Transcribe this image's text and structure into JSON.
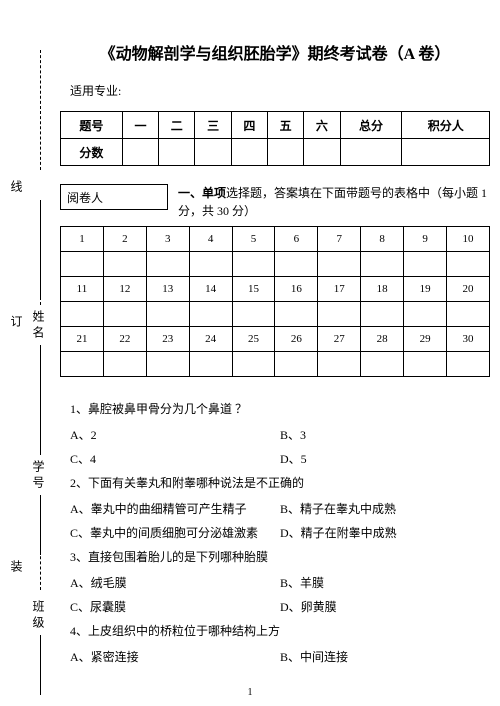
{
  "binding": {
    "labels": [
      "线",
      "姓名",
      "订",
      "学号",
      "装",
      "班级"
    ]
  },
  "title": "《动物解剖学与组织胚胎学》期终考试卷（A 卷）",
  "subtitle": "适用专业:",
  "score_table": {
    "header": [
      "题号",
      "一",
      "二",
      "三",
      "四",
      "五",
      "六",
      "总分",
      "积分人"
    ],
    "row_label": "分数"
  },
  "reviewer_label": "阅卷人",
  "section1_text_bold": "一、单项",
  "section1_text_rest": "选择题，答案填在下面带题号的表格中（每小题 1 分，共 30 分）",
  "answer_grid": {
    "rows": [
      [
        "1",
        "2",
        "3",
        "4",
        "5",
        "6",
        "7",
        "8",
        "9",
        "10"
      ],
      [
        "",
        "",
        "",
        "",
        "",
        "",
        "",
        "",
        "",
        ""
      ],
      [
        "11",
        "12",
        "13",
        "14",
        "15",
        "16",
        "17",
        "18",
        "19",
        "20"
      ],
      [
        "",
        "",
        "",
        "",
        "",
        "",
        "",
        "",
        "",
        ""
      ],
      [
        "21",
        "22",
        "23",
        "24",
        "25",
        "26",
        "27",
        "28",
        "29",
        "30"
      ],
      [
        "",
        "",
        "",
        "",
        "",
        "",
        "",
        "",
        "",
        ""
      ]
    ]
  },
  "questions": [
    {
      "num": "1、",
      "text": "鼻腔被鼻甲骨分为几个鼻道 ？",
      "opts": [
        "A、2",
        "B、3",
        "C、4",
        "D、5"
      ]
    },
    {
      "num": "2、",
      "text": "下面有关睾丸和附睾哪种说法是不正确的",
      "opts": [
        "A、睾丸中的曲细精管可产生精子",
        "B、精子在睾丸中成熟",
        "C、睾丸中的间质细胞可分泌雄激素",
        "D、精子在附睾中成熟"
      ]
    },
    {
      "num": "3、",
      "text": "直接包围着胎儿的是下列哪种胎膜",
      "opts": [
        "A、绒毛膜",
        "B、羊膜",
        "C、尿囊膜",
        "D、卵黄膜"
      ]
    },
    {
      "num": "4、",
      "text": "上皮组织中的桥粒位于哪种结构上方",
      "opts": [
        "A、紧密连接",
        "B、中间连接"
      ]
    }
  ],
  "page_number": "1"
}
